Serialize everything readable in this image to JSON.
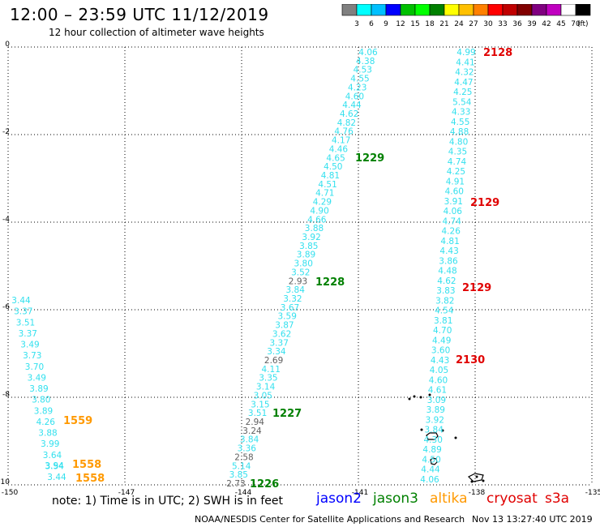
{
  "header": {
    "title": "12:00 – 23:59 UTC 11/12/2019",
    "subtitle": "12 hour collection of altimeter wave heights"
  },
  "legend": {
    "colors": [
      "#808080",
      "#00ffff",
      "#00c0ff",
      "#0000ff",
      "#00c000",
      "#00ff00",
      "#008000",
      "#ffff00",
      "#ffc000",
      "#ff8000",
      "#ff0000",
      "#c00000",
      "#800000",
      "#800080",
      "#c000c0",
      "#ffffff",
      "#000000"
    ],
    "labels": [
      "3",
      "6",
      "9",
      "12",
      "15",
      "18",
      "21",
      "24",
      "27",
      "30",
      "33",
      "36",
      "39",
      "42",
      "45",
      "70"
    ],
    "unit": "(ft)"
  },
  "axes": {
    "lat_labels": [
      "0",
      "-2",
      "-4",
      "-6",
      "-8",
      "-10"
    ],
    "lon_labels": [
      "-150",
      "-147",
      "-144",
      "-141",
      "-138",
      "-135"
    ]
  },
  "colors": {
    "cyan": "#33e0ee",
    "gray": "#606060",
    "green": "#008000",
    "red": "#e00000",
    "orange": "#ff9900",
    "blue": "#0000ff"
  },
  "tracks": [
    {
      "name": "track-a",
      "values": [
        "4.06",
        "4.38",
        "4.53",
        "4.55",
        "4.23",
        "4.60",
        "4.44",
        "4.62",
        "4.82",
        "4.76",
        "4.17",
        "4.46",
        "4.65",
        "4.50",
        "4.81",
        "4.51",
        "4.71",
        "4.29",
        "4.90",
        "4.66",
        "3.88",
        "3.92",
        "3.85",
        "3.89",
        "3.80",
        "3.52",
        "2.93",
        "3.84",
        "3.32",
        "3.67",
        "3.59",
        "3.87",
        "3.62",
        "3.37",
        "3.34",
        "2.69",
        "4.11",
        "3.35",
        "3.14",
        "3.05",
        "3.15",
        "3.51",
        "2.94",
        "3.24",
        "3.84",
        "3.36",
        "2.58",
        "5.14",
        "3.85",
        "2.73"
      ],
      "gray": [
        26,
        35,
        42,
        43,
        46,
        49
      ]
    },
    {
      "name": "track-b",
      "values": [
        "4.99",
        "4.41",
        "4.32",
        "4.47",
        "4.25",
        "5.54",
        "4.33",
        "4.55",
        "4.88",
        "4.80",
        "4.35",
        "4.74",
        "4.25",
        "4.91",
        "4.60",
        "3.91",
        "4.06",
        "4.74",
        "4.26",
        "4.81",
        "4.43",
        "3.86",
        "4.48",
        "4.62",
        "3.83",
        "3.82",
        "4.54",
        "3.81",
        "4.70",
        "4.49",
        "3.60",
        "4.43",
        "4.05",
        "4.60",
        "4.61",
        "3.09",
        "3.89",
        "3.92",
        "3.84",
        "4.30",
        "4.89",
        "4.50",
        "4.44",
        "4.06"
      ],
      "gray": []
    },
    {
      "name": "track-c",
      "values": [
        "3.44",
        "3.37",
        "3.51",
        "3.37",
        "3.49",
        "3.73",
        "3.70",
        "3.49",
        "3.89",
        "3.80",
        "3.89",
        "4.26",
        "3.88",
        "3.99",
        "3.64",
        "3.54",
        "3.44"
      ],
      "gray": []
    }
  ],
  "overlay_values": [
    "3.94"
  ],
  "time_labels": [
    {
      "text": "2128",
      "color": "red"
    },
    {
      "text": "1229",
      "color": "green"
    },
    {
      "text": "2129",
      "color": "red"
    },
    {
      "text": "1228",
      "color": "green"
    },
    {
      "text": "2129",
      "color": "red"
    },
    {
      "text": "2130",
      "color": "red"
    },
    {
      "text": "1559",
      "color": "orange"
    },
    {
      "text": "1227",
      "color": "green"
    },
    {
      "text": "1558",
      "color": "orange"
    },
    {
      "text": "1558",
      "color": "orange"
    },
    {
      "text": "1226",
      "color": "green"
    }
  ],
  "footer": {
    "note": "note: 1) Time is in UTC; 2) SWH is in feet",
    "satellites": [
      {
        "name": "jason2",
        "color": "blue"
      },
      {
        "name": "jason3",
        "color": "green"
      },
      {
        "name": "altika",
        "color": "orange"
      },
      {
        "name": "cryosat",
        "color": "red"
      },
      {
        "name": "s3a",
        "color": "red"
      }
    ],
    "credit": "NOAA/NESDIS Center for Satellite Applications and Research",
    "generated": "Nov 13 13:27:40 UTC 2019"
  }
}
